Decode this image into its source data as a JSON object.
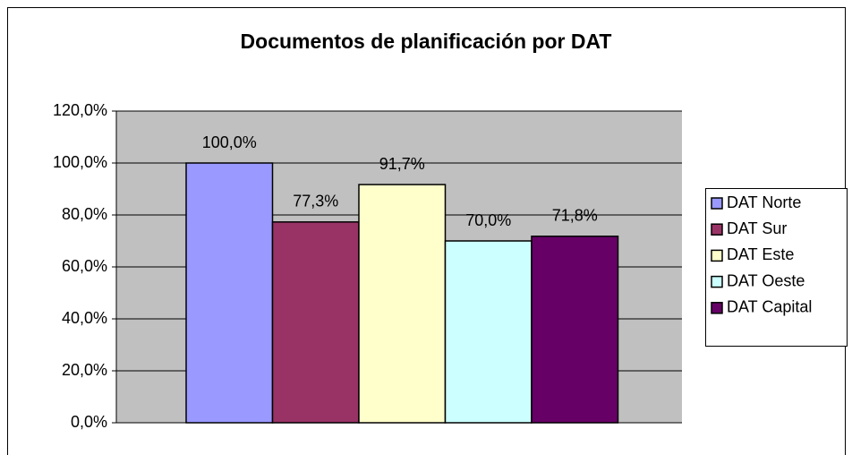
{
  "chart_data": {
    "type": "bar",
    "title": "Documentos de planificación por DAT",
    "series": [
      {
        "name": "DAT Norte",
        "color": "#9999ff",
        "values": [
          100
        ],
        "value_labels": [
          "100,0%"
        ]
      },
      {
        "name": "DAT Sur",
        "color": "#993366",
        "values": [
          77.3
        ],
        "value_labels": [
          "77,3%"
        ]
      },
      {
        "name": "DAT Este",
        "color": "#ffffcc",
        "values": [
          91.7
        ],
        "value_labels": [
          "91,7%"
        ]
      },
      {
        "name": "DAT Oeste",
        "color": "#ccffff",
        "values": [
          70.0
        ],
        "value_labels": [
          "70,0%"
        ]
      },
      {
        "name": "DAT Capital",
        "color": "#660066",
        "values": [
          71.8
        ],
        "value_labels": [
          "71,8%"
        ]
      }
    ],
    "ylim": [
      0,
      120
    ],
    "yticks": [
      {
        "value": 0,
        "label": "0,0%"
      },
      {
        "value": 20,
        "label": "20,0%"
      },
      {
        "value": 40,
        "label": "40,0%"
      },
      {
        "value": 60,
        "label": "60,0%"
      },
      {
        "value": 80,
        "label": "80,0%"
      },
      {
        "value": 100,
        "label": "100,0%"
      },
      {
        "value": 120,
        "label": "120,0%"
      }
    ],
    "grid": true,
    "plot_background": "#c0c0c0",
    "legend": "right"
  }
}
